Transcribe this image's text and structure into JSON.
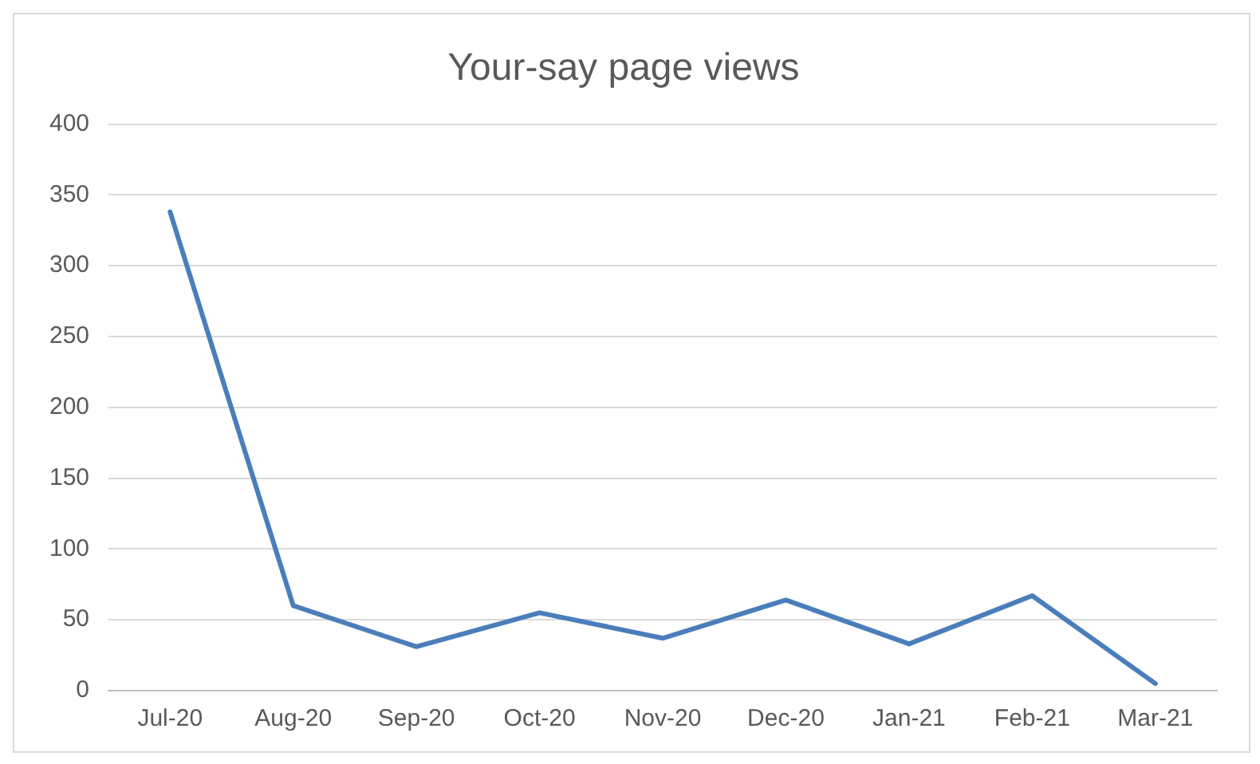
{
  "chart_data": {
    "type": "line",
    "title": "Your-say page views",
    "categories": [
      "Jul-20",
      "Aug-20",
      "Sep-20",
      "Oct-20",
      "Nov-20",
      "Dec-20",
      "Jan-21",
      "Feb-21",
      "Mar-21"
    ],
    "series": [
      {
        "color": "#4a7ebb",
        "values": [
          338,
          60,
          31,
          55,
          37,
          64,
          33,
          67,
          5
        ]
      }
    ],
    "ylim": [
      0,
      400
    ],
    "yticks": [
      0,
      50,
      100,
      150,
      200,
      250,
      300,
      350,
      400
    ],
    "grid": "y",
    "legend": false,
    "marker": "none",
    "line_style": "solid"
  }
}
